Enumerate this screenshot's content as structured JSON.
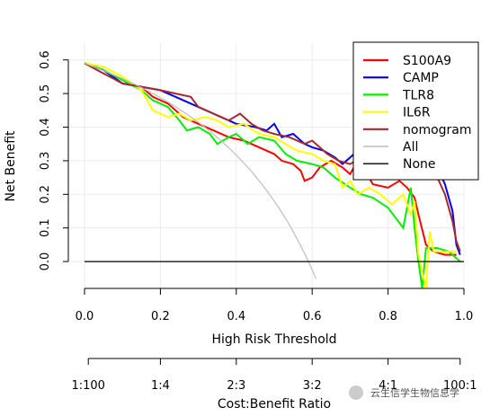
{
  "chart_data": {
    "type": "line",
    "xlabel": "High Risk Threshold",
    "ylabel": "Net Benefit",
    "xlim": [
      0.0,
      1.0
    ],
    "ylim": [
      -0.08,
      0.65
    ],
    "xticks": [
      "0.0",
      "0.2",
      "0.4",
      "0.6",
      "0.8",
      "1.0"
    ],
    "yticks": [
      "0.0",
      "0.1",
      "0.2",
      "0.3",
      "0.4",
      "0.5",
      "0.6"
    ],
    "grid": true,
    "legend_position": "top-right",
    "cost_benefit_axis": {
      "label": "Cost:Benefit Ratio",
      "ticks": [
        {
          "x": 0.01,
          "label": "1:100"
        },
        {
          "x": 0.2,
          "label": "1:4"
        },
        {
          "x": 0.4,
          "label": "2:3"
        },
        {
          "x": 0.6,
          "label": "3:2"
        },
        {
          "x": 0.8,
          "label": "4:1"
        },
        {
          "x": 0.99,
          "label": "100:1"
        }
      ]
    },
    "series": [
      {
        "name": "S100A9",
        "color": "#FF0000",
        "points": [
          [
            0.0,
            0.59
          ],
          [
            0.05,
            0.57
          ],
          [
            0.1,
            0.53
          ],
          [
            0.15,
            0.52
          ],
          [
            0.18,
            0.49
          ],
          [
            0.22,
            0.47
          ],
          [
            0.26,
            0.43
          ],
          [
            0.3,
            0.41
          ],
          [
            0.34,
            0.39
          ],
          [
            0.38,
            0.37
          ],
          [
            0.42,
            0.36
          ],
          [
            0.46,
            0.34
          ],
          [
            0.5,
            0.32
          ],
          [
            0.52,
            0.3
          ],
          [
            0.55,
            0.29
          ],
          [
            0.57,
            0.27
          ],
          [
            0.58,
            0.24
          ],
          [
            0.6,
            0.25
          ],
          [
            0.62,
            0.28
          ],
          [
            0.65,
            0.3
          ],
          [
            0.68,
            0.28
          ],
          [
            0.7,
            0.26
          ],
          [
            0.72,
            0.3
          ],
          [
            0.74,
            0.27
          ],
          [
            0.76,
            0.23
          ],
          [
            0.8,
            0.22
          ],
          [
            0.83,
            0.24
          ],
          [
            0.85,
            0.22
          ],
          [
            0.87,
            0.19
          ],
          [
            0.88,
            0.14
          ],
          [
            0.9,
            0.05
          ],
          [
            0.92,
            0.03
          ],
          [
            0.95,
            0.02
          ],
          [
            0.98,
            0.02
          ]
        ]
      },
      {
        "name": "CAMP",
        "color": "#0000FF",
        "points": [
          [
            0.0,
            0.59
          ],
          [
            0.05,
            0.57
          ],
          [
            0.1,
            0.53
          ],
          [
            0.15,
            0.52
          ],
          [
            0.2,
            0.51
          ],
          [
            0.24,
            0.49
          ],
          [
            0.28,
            0.47
          ],
          [
            0.32,
            0.45
          ],
          [
            0.36,
            0.43
          ],
          [
            0.4,
            0.41
          ],
          [
            0.45,
            0.4
          ],
          [
            0.48,
            0.39
          ],
          [
            0.5,
            0.41
          ],
          [
            0.52,
            0.37
          ],
          [
            0.55,
            0.38
          ],
          [
            0.58,
            0.35
          ],
          [
            0.6,
            0.34
          ],
          [
            0.63,
            0.33
          ],
          [
            0.66,
            0.31
          ],
          [
            0.68,
            0.29
          ],
          [
            0.7,
            0.31
          ],
          [
            0.72,
            0.33
          ],
          [
            0.74,
            0.31
          ],
          [
            0.76,
            0.32
          ],
          [
            0.78,
            0.3
          ],
          [
            0.8,
            0.33
          ],
          [
            0.82,
            0.3
          ],
          [
            0.85,
            0.31
          ],
          [
            0.88,
            0.3
          ],
          [
            0.9,
            0.32
          ],
          [
            0.93,
            0.28
          ],
          [
            0.95,
            0.23
          ],
          [
            0.97,
            0.15
          ],
          [
            0.98,
            0.05
          ],
          [
            0.99,
            0.02
          ]
        ]
      },
      {
        "name": "TLR8",
        "color": "#00EE00",
        "points": [
          [
            0.0,
            0.59
          ],
          [
            0.05,
            0.57
          ],
          [
            0.1,
            0.54
          ],
          [
            0.15,
            0.51
          ],
          [
            0.18,
            0.48
          ],
          [
            0.22,
            0.46
          ],
          [
            0.25,
            0.42
          ],
          [
            0.27,
            0.39
          ],
          [
            0.3,
            0.4
          ],
          [
            0.33,
            0.38
          ],
          [
            0.35,
            0.35
          ],
          [
            0.38,
            0.37
          ],
          [
            0.4,
            0.38
          ],
          [
            0.43,
            0.35
          ],
          [
            0.46,
            0.37
          ],
          [
            0.5,
            0.36
          ],
          [
            0.53,
            0.32
          ],
          [
            0.56,
            0.3
          ],
          [
            0.6,
            0.29
          ],
          [
            0.63,
            0.28
          ],
          [
            0.66,
            0.25
          ],
          [
            0.7,
            0.22
          ],
          [
            0.73,
            0.2
          ],
          [
            0.76,
            0.19
          ],
          [
            0.8,
            0.16
          ],
          [
            0.82,
            0.13
          ],
          [
            0.84,
            0.1
          ],
          [
            0.86,
            0.22
          ],
          [
            0.87,
            0.1
          ],
          [
            0.88,
            0.0
          ],
          [
            0.89,
            -0.08
          ],
          [
            0.9,
            0.04
          ],
          [
            0.93,
            0.04
          ],
          [
            0.96,
            0.03
          ],
          [
            0.99,
            0.0
          ]
        ]
      },
      {
        "name": "IL6R",
        "color": "#FFFF00",
        "points": [
          [
            0.0,
            0.59
          ],
          [
            0.05,
            0.58
          ],
          [
            0.1,
            0.55
          ],
          [
            0.15,
            0.51
          ],
          [
            0.18,
            0.45
          ],
          [
            0.22,
            0.43
          ],
          [
            0.25,
            0.44
          ],
          [
            0.28,
            0.42
          ],
          [
            0.32,
            0.43
          ],
          [
            0.35,
            0.42
          ],
          [
            0.38,
            0.4
          ],
          [
            0.42,
            0.41
          ],
          [
            0.46,
            0.38
          ],
          [
            0.5,
            0.37
          ],
          [
            0.53,
            0.35
          ],
          [
            0.56,
            0.33
          ],
          [
            0.6,
            0.32
          ],
          [
            0.63,
            0.3
          ],
          [
            0.66,
            0.29
          ],
          [
            0.68,
            0.22
          ],
          [
            0.7,
            0.24
          ],
          [
            0.72,
            0.2
          ],
          [
            0.75,
            0.22
          ],
          [
            0.78,
            0.2
          ],
          [
            0.81,
            0.17
          ],
          [
            0.84,
            0.2
          ],
          [
            0.86,
            0.14
          ],
          [
            0.87,
            0.18
          ],
          [
            0.88,
            0.02
          ],
          [
            0.9,
            -0.08
          ],
          [
            0.91,
            0.09
          ],
          [
            0.92,
            0.03
          ],
          [
            0.95,
            0.03
          ],
          [
            0.98,
            0.03
          ]
        ]
      },
      {
        "name": "nomogram",
        "color": "#A52A2A",
        "points": [
          [
            0.0,
            0.59
          ],
          [
            0.05,
            0.56
          ],
          [
            0.1,
            0.53
          ],
          [
            0.15,
            0.52
          ],
          [
            0.2,
            0.51
          ],
          [
            0.24,
            0.5
          ],
          [
            0.28,
            0.49
          ],
          [
            0.3,
            0.46
          ],
          [
            0.34,
            0.44
          ],
          [
            0.38,
            0.42
          ],
          [
            0.41,
            0.44
          ],
          [
            0.44,
            0.41
          ],
          [
            0.47,
            0.39
          ],
          [
            0.5,
            0.38
          ],
          [
            0.54,
            0.37
          ],
          [
            0.58,
            0.35
          ],
          [
            0.6,
            0.36
          ],
          [
            0.62,
            0.34
          ],
          [
            0.64,
            0.32
          ],
          [
            0.67,
            0.3
          ],
          [
            0.7,
            0.29
          ],
          [
            0.73,
            0.31
          ],
          [
            0.76,
            0.28
          ],
          [
            0.8,
            0.3
          ],
          [
            0.83,
            0.28
          ],
          [
            0.86,
            0.26
          ],
          [
            0.9,
            0.27
          ],
          [
            0.93,
            0.25
          ],
          [
            0.95,
            0.2
          ],
          [
            0.97,
            0.12
          ],
          [
            0.98,
            0.06
          ],
          [
            0.99,
            0.03
          ]
        ]
      },
      {
        "name": "All",
        "color": "#BEBEBE",
        "curve": "treat_all",
        "prevalence": 0.59
      },
      {
        "name": "None",
        "color": "#000000",
        "points": [
          [
            0.0,
            0.0
          ],
          [
            1.0,
            0.0
          ]
        ]
      }
    ]
  },
  "watermark": "云生信学生物信息学"
}
